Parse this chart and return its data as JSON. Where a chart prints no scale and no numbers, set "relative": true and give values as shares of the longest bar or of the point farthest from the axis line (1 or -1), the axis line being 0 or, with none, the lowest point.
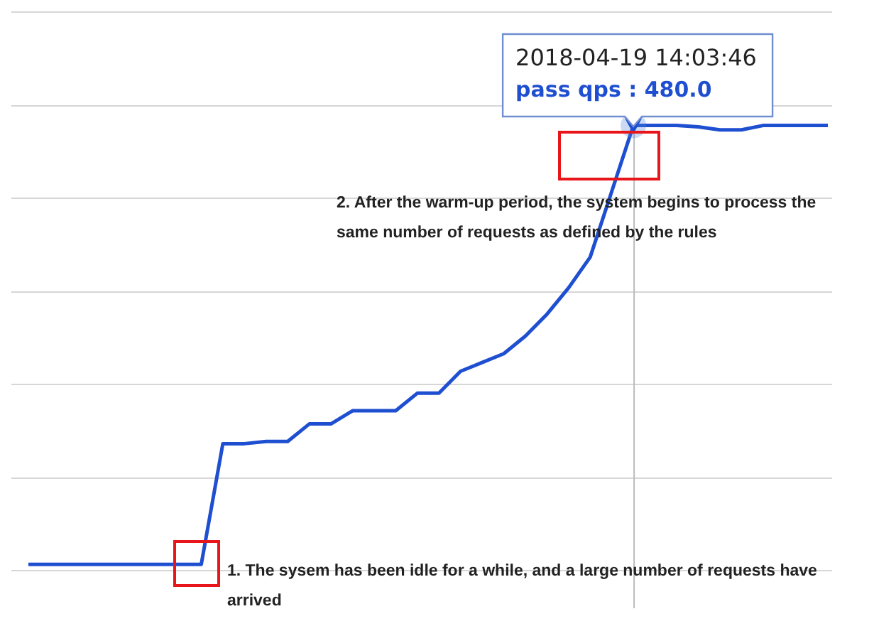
{
  "chart_data": {
    "type": "line",
    "relative": true,
    "grid": "y",
    "marker": "none",
    "legend": false,
    "categories": [
      null,
      null,
      null,
      null,
      null,
      null,
      null,
      null,
      null,
      null,
      null,
      null,
      null,
      null,
      null,
      null,
      null,
      null,
      null,
      null,
      null,
      null,
      null,
      null,
      null,
      null,
      null,
      null,
      null,
      null,
      null,
      null,
      null,
      null,
      null,
      null,
      null,
      null
    ],
    "series": [
      {
        "color": "#1f4fd1",
        "values": [
          0,
          0,
          0,
          0,
          0,
          0,
          0,
          0,
          0,
          0.275,
          0.275,
          0.28,
          0.28,
          0.32,
          0.32,
          0.35,
          0.35,
          0.35,
          0.39,
          0.39,
          0.44,
          0.46,
          0.48,
          0.52,
          0.57,
          0.63,
          0.7,
          0.85,
          1,
          1,
          1,
          0.997,
          0.99,
          0.99,
          1,
          1,
          1,
          1
        ]
      }
    ],
    "annotations": [
      "2018-04-19 14:03:46",
      "pass qps : 480.0",
      "1. The sysem has been idle for a while, and a large number of requests have arrived",
      "2. After the warm-up period, the system begins to process the same number of requests as defined by the rules"
    ]
  }
}
